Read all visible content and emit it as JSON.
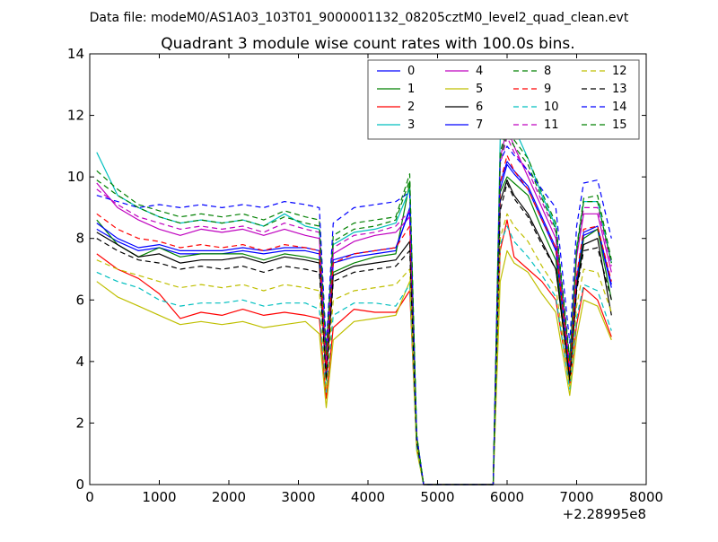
{
  "figure": {
    "suptitle": "Data file: modeM0/AS1A03_103T01_9000001132_08205cztM0_level2_quad_clean.evt"
  },
  "chart_data": {
    "type": "line",
    "title": "Quadrant 3 module wise count rates with 100.0s bins.",
    "xlabel": "",
    "ylabel": "",
    "x_offset_label": "+2.28995e8",
    "xlim": [
      0,
      8000
    ],
    "ylim": [
      0,
      14
    ],
    "xticks": [
      0,
      1000,
      2000,
      3000,
      4000,
      5000,
      6000,
      7000,
      8000
    ],
    "xtick_labels": [
      "0",
      "1000",
      "2000",
      "3000",
      "4000",
      "5000",
      "6000",
      "7000",
      "8000"
    ],
    "yticks": [
      0,
      2,
      4,
      6,
      8,
      10,
      12,
      14
    ],
    "ytick_labels": [
      "0",
      "2",
      "4",
      "6",
      "8",
      "10",
      "12",
      "14"
    ],
    "grid": false,
    "legend_position": "upper right",
    "legend_columns": 4,
    "x": [
      100,
      400,
      700,
      1000,
      1300,
      1600,
      1900,
      2200,
      2500,
      2800,
      3100,
      3300,
      3400,
      3500,
      3800,
      4100,
      4400,
      4600,
      4700,
      4800,
      4900,
      5500,
      5800,
      5900,
      6000,
      6100,
      6300,
      6500,
      6700,
      6900,
      7000,
      7100,
      7300,
      7500
    ],
    "series": [
      {
        "name": "0",
        "color": "#0000ff",
        "style": "solid",
        "values": [
          8.3,
          7.9,
          7.6,
          7.7,
          7.5,
          7.5,
          7.5,
          7.6,
          7.5,
          7.6,
          7.6,
          7.5,
          3.5,
          7.2,
          7.4,
          7.5,
          7.6,
          9.0,
          1.5,
          0,
          0,
          0,
          0,
          9.6,
          10.4,
          10.1,
          9.6,
          8.6,
          7.6,
          3.6,
          6.6,
          8.1,
          8.3,
          6.4
        ]
      },
      {
        "name": "1",
        "color": "#008000",
        "style": "solid",
        "values": [
          8.6,
          7.8,
          7.4,
          7.7,
          7.4,
          7.5,
          7.5,
          7.5,
          7.3,
          7.5,
          7.4,
          7.3,
          3.4,
          6.9,
          7.2,
          7.4,
          7.5,
          9.8,
          1.4,
          0,
          0,
          0,
          0,
          9.5,
          10.0,
          9.8,
          9.4,
          8.3,
          7.3,
          3.3,
          6.4,
          8.0,
          8.3,
          6.0
        ]
      },
      {
        "name": "2",
        "color": "#ff0000",
        "style": "solid",
        "values": [
          7.5,
          7.0,
          6.7,
          6.2,
          5.4,
          5.6,
          5.5,
          5.7,
          5.5,
          5.6,
          5.5,
          5.4,
          2.8,
          5.1,
          5.7,
          5.6,
          5.6,
          6.3,
          1.2,
          0,
          0,
          0,
          0,
          7.6,
          8.6,
          7.4,
          7.0,
          6.6,
          6.0,
          3.2,
          5.2,
          6.4,
          6.0,
          4.8
        ]
      },
      {
        "name": "3",
        "color": "#00bfbf",
        "style": "solid",
        "values": [
          10.8,
          9.4,
          9.0,
          8.7,
          8.5,
          8.6,
          8.5,
          8.6,
          8.4,
          8.8,
          8.4,
          8.3,
          4.2,
          7.8,
          8.2,
          8.3,
          8.5,
          9.6,
          1.6,
          0,
          0,
          0,
          0,
          11.2,
          12.2,
          11.6,
          10.6,
          9.4,
          8.4,
          4.0,
          7.6,
          9.2,
          9.2,
          7.2
        ]
      },
      {
        "name": "4",
        "color": "#bf00bf",
        "style": "solid",
        "values": [
          9.8,
          9.0,
          8.6,
          8.3,
          8.1,
          8.3,
          8.2,
          8.3,
          8.1,
          8.3,
          8.1,
          8.0,
          4.0,
          7.5,
          7.9,
          8.1,
          8.2,
          8.7,
          1.5,
          0,
          0,
          0,
          0,
          10.6,
          11.6,
          11.0,
          10.0,
          9.0,
          8.0,
          3.8,
          7.4,
          8.8,
          8.8,
          6.9
        ]
      },
      {
        "name": "5",
        "color": "#bfbf00",
        "style": "solid",
        "values": [
          6.6,
          6.1,
          5.8,
          5.5,
          5.2,
          5.3,
          5.2,
          5.3,
          5.1,
          5.2,
          5.3,
          4.9,
          2.5,
          4.7,
          5.3,
          5.4,
          5.5,
          6.6,
          1.1,
          0,
          0,
          0,
          0,
          6.6,
          7.6,
          7.2,
          6.9,
          6.2,
          5.6,
          2.9,
          4.8,
          6.0,
          5.8,
          4.7
        ]
      },
      {
        "name": "6",
        "color": "#000000",
        "style": "solid",
        "values": [
          8.2,
          7.8,
          7.4,
          7.5,
          7.2,
          7.3,
          7.3,
          7.4,
          7.2,
          7.4,
          7.3,
          7.2,
          3.5,
          6.8,
          7.1,
          7.2,
          7.3,
          7.9,
          1.4,
          0,
          0,
          0,
          0,
          9.2,
          9.9,
          9.4,
          8.8,
          7.9,
          7.0,
          3.4,
          6.4,
          7.8,
          8.0,
          5.5
        ]
      },
      {
        "name": "7",
        "color": "#0000ff",
        "style": "solid",
        "values": [
          8.5,
          8.0,
          7.7,
          7.8,
          7.6,
          7.6,
          7.6,
          7.7,
          7.6,
          7.7,
          7.7,
          7.6,
          3.6,
          7.3,
          7.5,
          7.6,
          7.7,
          8.9,
          1.5,
          0,
          0,
          0,
          0,
          9.8,
          10.5,
          10.2,
          9.7,
          8.7,
          7.7,
          3.7,
          6.7,
          8.2,
          8.4,
          6.5
        ]
      },
      {
        "name": "8",
        "color": "#008000",
        "style": "dashed",
        "values": [
          10.2,
          9.6,
          9.1,
          8.9,
          8.7,
          8.8,
          8.7,
          8.8,
          8.6,
          8.9,
          8.7,
          8.6,
          4.3,
          8.1,
          8.5,
          8.6,
          8.7,
          10.1,
          1.6,
          0,
          0,
          0,
          0,
          10.8,
          11.6,
          11.2,
          10.6,
          9.5,
          8.5,
          4.1,
          7.7,
          9.3,
          9.4,
          7.3
        ]
      },
      {
        "name": "9",
        "color": "#ff0000",
        "style": "dashed",
        "values": [
          8.8,
          8.3,
          8.0,
          7.9,
          7.7,
          7.8,
          7.7,
          7.8,
          7.6,
          7.8,
          7.7,
          7.6,
          3.7,
          7.2,
          7.5,
          7.6,
          7.7,
          8.4,
          1.5,
          0,
          0,
          0,
          0,
          9.8,
          10.7,
          10.2,
          9.6,
          8.6,
          7.7,
          3.7,
          6.8,
          8.3,
          8.4,
          6.6
        ]
      },
      {
        "name": "10",
        "color": "#00bfbf",
        "style": "dashed",
        "values": [
          6.9,
          6.6,
          6.4,
          6.0,
          5.8,
          5.9,
          5.9,
          6.0,
          5.8,
          5.9,
          5.9,
          5.7,
          3.0,
          5.5,
          5.9,
          5.9,
          5.8,
          6.5,
          1.2,
          0,
          0,
          0,
          0,
          7.8,
          8.4,
          7.9,
          7.4,
          6.8,
          6.1,
          3.1,
          5.4,
          6.5,
          6.3,
          5.0
        ]
      },
      {
        "name": "11",
        "color": "#bf00bf",
        "style": "dashed",
        "values": [
          9.6,
          9.1,
          8.7,
          8.5,
          8.3,
          8.4,
          8.3,
          8.4,
          8.2,
          8.5,
          8.3,
          8.2,
          4.0,
          7.7,
          8.1,
          8.2,
          8.4,
          8.9,
          1.5,
          0,
          0,
          0,
          0,
          10.4,
          11.3,
          10.8,
          10.2,
          9.2,
          8.2,
          3.9,
          7.5,
          9.0,
          9.0,
          7.1
        ]
      },
      {
        "name": "12",
        "color": "#bfbf00",
        "style": "dashed",
        "values": [
          7.3,
          7.0,
          6.8,
          6.6,
          6.4,
          6.5,
          6.4,
          6.5,
          6.3,
          6.5,
          6.4,
          6.3,
          3.1,
          6.0,
          6.3,
          6.4,
          6.5,
          7.0,
          1.3,
          0,
          0,
          0,
          0,
          8.0,
          8.8,
          8.4,
          7.9,
          7.1,
          6.4,
          3.2,
          5.8,
          7.0,
          6.9,
          5.6
        ]
      },
      {
        "name": "13",
        "color": "#000000",
        "style": "dashed",
        "values": [
          8.0,
          7.6,
          7.3,
          7.2,
          7.0,
          7.1,
          7.0,
          7.1,
          6.9,
          7.1,
          7.0,
          6.9,
          3.4,
          6.6,
          6.9,
          7.0,
          7.1,
          7.6,
          1.4,
          0,
          0,
          0,
          0,
          8.9,
          9.8,
          9.3,
          8.7,
          7.8,
          7.0,
          3.4,
          6.3,
          7.6,
          7.7,
          6.0
        ]
      },
      {
        "name": "14",
        "color": "#0000ff",
        "style": "dashed",
        "values": [
          9.4,
          9.2,
          9.0,
          9.1,
          9.0,
          9.1,
          9.0,
          9.1,
          9.0,
          9.2,
          9.1,
          9.0,
          4.5,
          8.5,
          9.0,
          9.1,
          9.2,
          9.5,
          1.6,
          0,
          0,
          0,
          0,
          10.5,
          11.0,
          10.7,
          10.2,
          9.6,
          9.0,
          4.6,
          8.4,
          9.8,
          9.9,
          8.0
        ]
      },
      {
        "name": "15",
        "color": "#008000",
        "style": "dashed",
        "values": [
          9.9,
          9.4,
          9.0,
          8.7,
          8.5,
          8.6,
          8.5,
          8.6,
          8.4,
          8.7,
          8.5,
          8.4,
          4.2,
          7.9,
          8.3,
          8.4,
          8.6,
          9.9,
          1.6,
          0,
          0,
          0,
          0,
          10.6,
          11.4,
          11.0,
          10.4,
          9.3,
          8.3,
          4.0,
          7.6,
          9.2,
          9.2,
          7.2
        ]
      }
    ]
  }
}
